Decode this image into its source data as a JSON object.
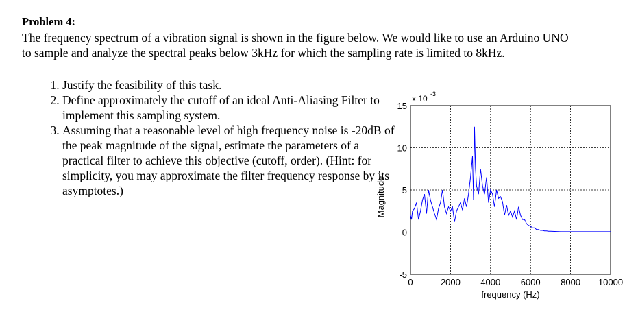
{
  "problem": {
    "title": "Problem 4:",
    "intro": "The frequency spectrum of a vibration signal is shown in the figure below. We would like to use an Arduino UNO to sample and analyze the spectral peaks below 3kHz for which the sampling rate is limited to 8kHz.",
    "tasks": [
      {
        "number": "1.",
        "text": "Justify the feasibility of this task."
      },
      {
        "number": "2.",
        "text": "Define approximately the cutoff of an ideal Anti-Aliasing Filter to implement this sampling system."
      },
      {
        "number": "3.",
        "text": "Assuming that a reasonable level of high frequency noise is -20dB of the peak magnitude of the signal, estimate the parameters of a practical filter to achieve this objective (cutoff, order). (Hint: for simplicity, you may approximate the filter frequency response by its asymptotes.)"
      }
    ]
  },
  "chart_data": {
    "type": "line",
    "title": "",
    "xlabel": "frequency (Hz)",
    "ylabel": "Magnitude",
    "y_scale_label": "x 10",
    "y_scale_exponent": "-3",
    "xlim": [
      0,
      10000
    ],
    "ylim": [
      -5,
      15
    ],
    "xticks": [
      0,
      2000,
      4000,
      6000,
      8000,
      10000
    ],
    "yticks": [
      -5,
      0,
      5,
      10,
      15
    ],
    "grid": "dashed",
    "line_color": "#0000ff",
    "series": [
      {
        "x": [
          0,
          50,
          100,
          200,
          300,
          400,
          500,
          600,
          700,
          800,
          900,
          1000,
          1100,
          1200,
          1300,
          1400,
          1500,
          1600,
          1700,
          1800,
          1900,
          2000,
          2100,
          2200,
          2300,
          2400,
          2500,
          2600,
          2700,
          2800,
          2900,
          3000,
          3100,
          3150,
          3200,
          3250,
          3300,
          3400,
          3500,
          3600,
          3700,
          3800,
          3900,
          4000,
          4100,
          4200,
          4300,
          4400,
          4500,
          4600,
          4700,
          4800,
          4900,
          5000,
          5100,
          5200,
          5300,
          5400,
          5500,
          5600,
          5700,
          5800,
          5900,
          6000,
          6100,
          6200,
          6300,
          6400,
          6500,
          6600,
          6700,
          6800,
          6900,
          7000,
          7500,
          8000,
          8500,
          9000,
          9500,
          10000
        ],
        "y": [
          2.0,
          1.5,
          2.5,
          2.8,
          3.5,
          1.5,
          2.5,
          3.8,
          4.5,
          2.2,
          5.0,
          3.8,
          3.0,
          2.2,
          1.5,
          2.8,
          3.5,
          5.0,
          3.0,
          2.2,
          3.0,
          2.5,
          3.0,
          1.2,
          2.5,
          3.0,
          3.5,
          2.6,
          4.0,
          3.0,
          4.5,
          6.5,
          9.0,
          3.8,
          12.5,
          7.5,
          5.5,
          4.5,
          7.5,
          5.5,
          4.5,
          6.5,
          3.5,
          5.0,
          4.5,
          3.0,
          5.0,
          4.0,
          4.2,
          3.6,
          2.0,
          3.2,
          2.0,
          2.5,
          1.8,
          2.5,
          1.5,
          3.0,
          2.0,
          1.5,
          1.5,
          1.0,
          0.8,
          0.7,
          0.5,
          0.5,
          0.3,
          0.3,
          0.2,
          0.2,
          0.15,
          0.15,
          0.1,
          0.1,
          0.05,
          0.05,
          0.05,
          0.05,
          0.05,
          0.05
        ]
      }
    ]
  }
}
